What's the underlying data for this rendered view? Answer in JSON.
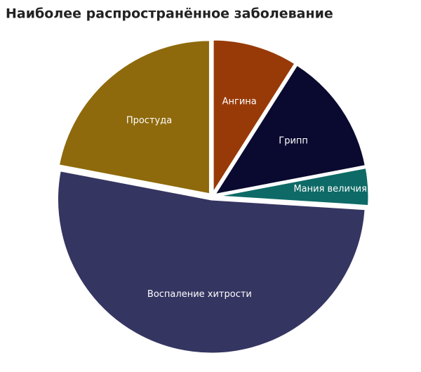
{
  "chart_data": {
    "type": "pie",
    "title": "Наиболее распространённое заболевание",
    "categories": [
      "Ангина",
      "Грипп",
      "Мания величия",
      "Воспаление хитрости",
      "Простуда"
    ],
    "values": [
      9,
      13,
      4,
      52,
      22
    ],
    "colors": [
      "#983a08",
      "#0a0a30",
      "#0e6a66",
      "#353562",
      "#8e6a0c"
    ]
  }
}
